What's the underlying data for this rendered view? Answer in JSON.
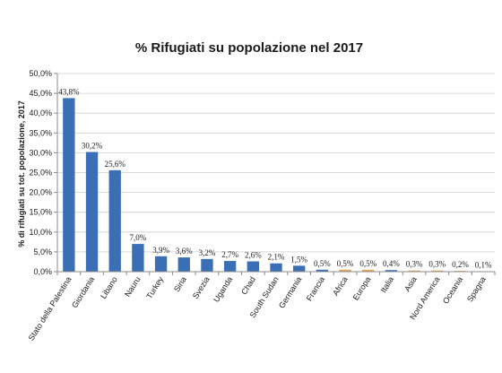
{
  "chart_data": {
    "type": "bar",
    "title": "% Rifugiati su popolazione nel 2017",
    "xlabel": "",
    "ylabel": "% di rifugiati su tot. popolazione, 2017",
    "ylim": [
      0,
      50
    ],
    "grid": true,
    "legend": "none",
    "y_tick_labels": [
      "0,0%",
      "5,0%",
      "10,0%",
      "15,0%",
      "20,0%",
      "25,0%",
      "30,0%",
      "35,0%",
      "40,0%",
      "45,0%",
      "50,0%"
    ],
    "categories": [
      "Stato della Palestina",
      "Giordania",
      "Libano",
      "Nauru",
      "Turkey",
      "Siria",
      "Svezia",
      "Uganda",
      "Chad",
      "South Sudan",
      "Germania",
      "Francia",
      "Africa",
      "Europa",
      "Italia",
      "Asia",
      "Nord America",
      "Oceania",
      "Spagna"
    ],
    "values": [
      43.8,
      30.2,
      25.6,
      7.0,
      3.9,
      3.6,
      3.2,
      2.7,
      2.6,
      2.1,
      1.5,
      0.5,
      0.5,
      0.5,
      0.4,
      0.3,
      0.3,
      0.2,
      0.1
    ],
    "data_labels": [
      "43,8%",
      "30,2%",
      "25,6%",
      "7,0%",
      "3,9%",
      "3,6%",
      "3,2%",
      "2,7%",
      "2,6%",
      "2,1%",
      "1,5%",
      "0,5%",
      "0,5%",
      "0,5%",
      "0,4%",
      "0,3%",
      "0,3%",
      "0,2%",
      "0,1%"
    ],
    "colors": [
      "#3a6fb5",
      "#3a6fb5",
      "#3a6fb5",
      "#3a6fb5",
      "#3a6fb5",
      "#3a6fb5",
      "#3a6fb5",
      "#3a6fb5",
      "#3a6fb5",
      "#3a6fb5",
      "#3a6fb5",
      "#3a6fb5",
      "#e8a65a",
      "#e8a65a",
      "#3a6fb5",
      "#e8a65a",
      "#e8a65a",
      "#e8a65a",
      "#3a6fb5"
    ]
  }
}
